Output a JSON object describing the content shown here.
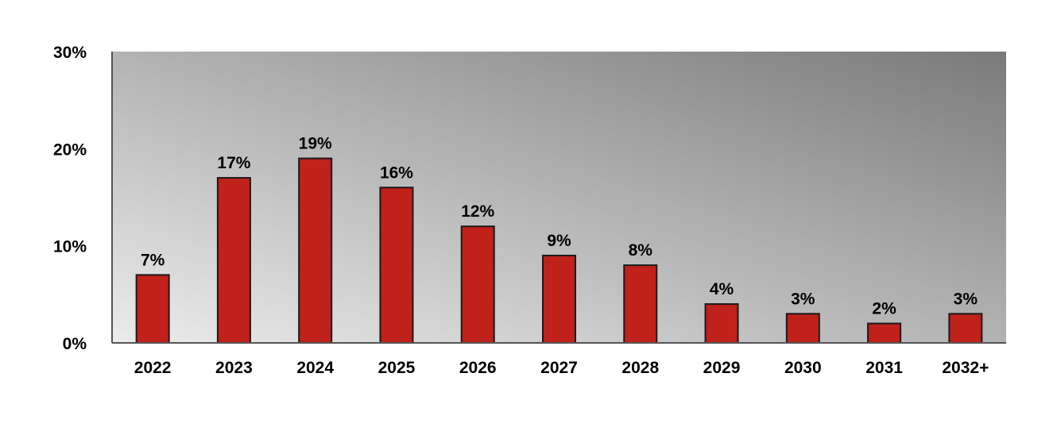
{
  "chart_data": {
    "type": "bar",
    "categories": [
      "2022",
      "2023",
      "2024",
      "2025",
      "2026",
      "2027",
      "2028",
      "2029",
      "2030",
      "2031",
      "2032+"
    ],
    "values": [
      7,
      17,
      19,
      16,
      12,
      9,
      8,
      4,
      3,
      2,
      3
    ],
    "data_labels": [
      "7%",
      "17%",
      "19%",
      "16%",
      "12%",
      "9%",
      "8%",
      "4%",
      "3%",
      "2%",
      "3%"
    ],
    "y_ticks": [
      0,
      10,
      20,
      30
    ],
    "y_tick_labels": [
      "0%",
      "10%",
      "20%",
      "30%"
    ],
    "ylim": [
      0,
      30
    ],
    "title": "",
    "xlabel": "",
    "ylabel": "",
    "grid": false,
    "legend": "none",
    "colors": {
      "bar_fill": "#c0211a",
      "bar_stroke": "#1a1a1a",
      "plot_bg_light": "#ececec",
      "plot_bg_dark": "#7a7a7a",
      "axis": "#555555"
    }
  }
}
